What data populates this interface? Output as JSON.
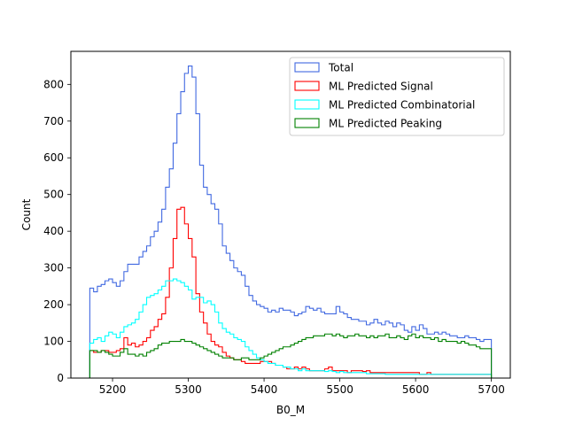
{
  "chart_data": {
    "type": "histogram",
    "xlabel": "B0_M",
    "ylabel": "Count",
    "xlim": [
      5145,
      5725
    ],
    "ylim": [
      0,
      890
    ],
    "bin_start": 5170,
    "bin_width": 5,
    "x_ticks": [
      5200,
      5300,
      5400,
      5500,
      5600,
      5700
    ],
    "y_ticks": [
      0,
      100,
      200,
      300,
      400,
      500,
      600,
      700,
      800
    ],
    "legend_position": "top-right",
    "series": [
      {
        "name": "Total",
        "color": "#4169e1",
        "values": [
          245,
          235,
          250,
          255,
          265,
          270,
          260,
          250,
          265,
          290,
          310,
          310,
          310,
          330,
          345,
          360,
          385,
          400,
          425,
          460,
          520,
          570,
          640,
          720,
          780,
          830,
          850,
          820,
          720,
          580,
          520,
          500,
          475,
          460,
          420,
          360,
          340,
          320,
          300,
          290,
          280,
          250,
          225,
          210,
          200,
          195,
          190,
          180,
          185,
          180,
          190,
          185,
          185,
          180,
          170,
          175,
          180,
          195,
          190,
          185,
          190,
          180,
          175,
          175,
          175,
          195,
          180,
          175,
          165,
          160,
          160,
          155,
          155,
          145,
          150,
          160,
          150,
          145,
          155,
          150,
          140,
          150,
          145,
          130,
          125,
          140,
          130,
          145,
          135,
          120,
          120,
          125,
          120,
          125,
          120,
          115,
          115,
          110,
          110,
          115,
          110,
          110,
          105,
          100,
          105,
          105
        ]
      },
      {
        "name": "ML Predicted Signal",
        "color": "#ff0000",
        "values": [
          75,
          70,
          70,
          75,
          75,
          70,
          70,
          75,
          80,
          110,
          90,
          95,
          85,
          90,
          100,
          110,
          130,
          140,
          160,
          175,
          220,
          300,
          380,
          460,
          465,
          420,
          380,
          330,
          230,
          180,
          150,
          120,
          100,
          90,
          85,
          70,
          60,
          55,
          50,
          50,
          45,
          40,
          40,
          40,
          40,
          45,
          45,
          45,
          40,
          35,
          35,
          30,
          25,
          25,
          30,
          25,
          30,
          25,
          20,
          20,
          20,
          20,
          25,
          30,
          20,
          20,
          20,
          20,
          15,
          20,
          20,
          20,
          18,
          20,
          15,
          15,
          15,
          15,
          15,
          15,
          15,
          15,
          15,
          15,
          15,
          15,
          15,
          10,
          10,
          15,
          10,
          10,
          10,
          10,
          10,
          10,
          10,
          10,
          10,
          10,
          10,
          10,
          10,
          10,
          10,
          10
        ]
      },
      {
        "name": "ML Predicted Combinatorial",
        "color": "#00ffff",
        "values": [
          95,
          105,
          110,
          100,
          115,
          125,
          120,
          110,
          125,
          140,
          145,
          150,
          160,
          180,
          200,
          220,
          225,
          230,
          240,
          250,
          265,
          265,
          270,
          265,
          260,
          250,
          240,
          215,
          220,
          220,
          205,
          210,
          200,
          180,
          150,
          135,
          125,
          120,
          110,
          105,
          100,
          85,
          75,
          65,
          55,
          50,
          45,
          40,
          40,
          35,
          35,
          30,
          30,
          25,
          25,
          20,
          25,
          20,
          20,
          20,
          20,
          20,
          18,
          20,
          18,
          15,
          18,
          15,
          15,
          15,
          15,
          15,
          15,
          12,
          12,
          12,
          12,
          12,
          10,
          10,
          10,
          10,
          10,
          10,
          10,
          10,
          10,
          10,
          10,
          10,
          10,
          10,
          10,
          10,
          10,
          10,
          10,
          10,
          10,
          10,
          10,
          10,
          10,
          10,
          10,
          10
        ]
      },
      {
        "name": "ML Predicted Peaking",
        "color": "#008000",
        "values": [
          75,
          75,
          70,
          75,
          70,
          65,
          60,
          60,
          70,
          80,
          65,
          65,
          60,
          65,
          60,
          70,
          75,
          80,
          90,
          95,
          95,
          100,
          100,
          100,
          105,
          100,
          100,
          95,
          90,
          85,
          80,
          75,
          70,
          65,
          60,
          55,
          55,
          55,
          50,
          50,
          55,
          55,
          50,
          50,
          50,
          55,
          60,
          65,
          70,
          75,
          80,
          85,
          85,
          90,
          95,
          100,
          105,
          110,
          110,
          115,
          115,
          115,
          120,
          120,
          115,
          120,
          115,
          110,
          115,
          115,
          120,
          115,
          115,
          110,
          115,
          110,
          115,
          115,
          120,
          110,
          110,
          115,
          110,
          105,
          115,
          120,
          110,
          115,
          110,
          110,
          105,
          110,
          100,
          105,
          100,
          100,
          100,
          95,
          100,
          95,
          90,
          90,
          85,
          80,
          80,
          80
        ]
      }
    ]
  }
}
